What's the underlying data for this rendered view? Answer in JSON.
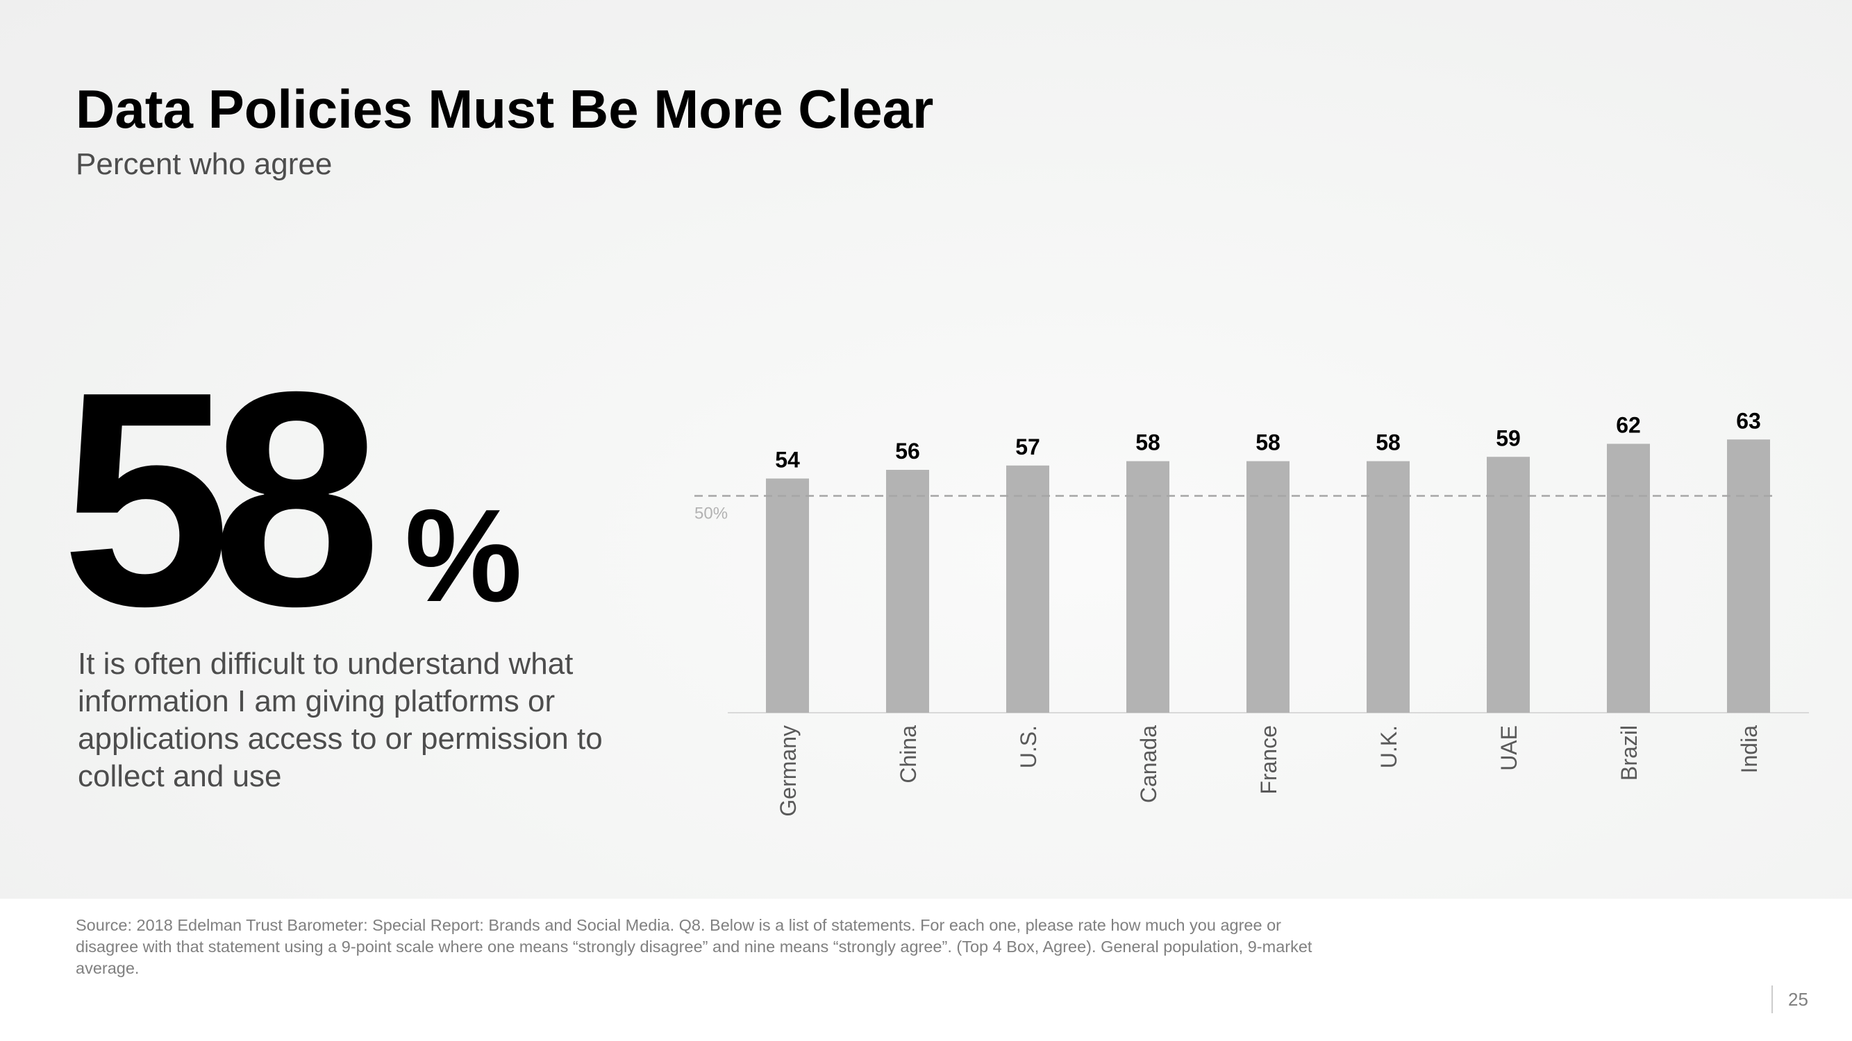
{
  "slide": {
    "title": "Data Policies Must Be More Clear",
    "subtitle": "Percent who agree",
    "big_stat": "58",
    "big_stat_suffix": "%",
    "statement": "It is often difficult to understand what information I am giving platforms or applications access to or permission to collect and use",
    "source": "Source: 2018 Edelman Trust Barometer: Special Report: Brands and Social Media. Q8. Below is a list of statements. For each one, please rate how much you agree or disagree with that statement using a 9-point scale where one means “strongly disagree” and nine means “strongly agree”. (Top 4 Box, Agree). General population, 9-market average.",
    "page_number": "25"
  },
  "chart_data": {
    "type": "bar",
    "categories": [
      "Germany",
      "China",
      "U.S.",
      "Canada",
      "France",
      "U.K.",
      "UAE",
      "Brazil",
      "India"
    ],
    "values": [
      54,
      56,
      57,
      58,
      58,
      58,
      59,
      62,
      63
    ],
    "reference_line": {
      "value": 50,
      "label": "50%",
      "style": "dashed"
    },
    "ylim": [
      0,
      63
    ],
    "bar_color": "#b3b3b3",
    "grid": false,
    "title": "",
    "xlabel": "",
    "ylabel": ""
  }
}
